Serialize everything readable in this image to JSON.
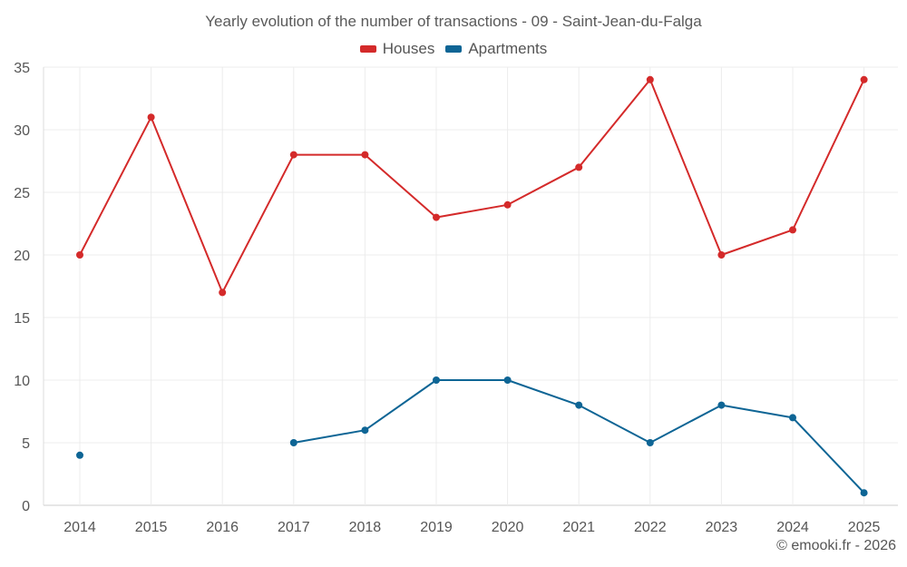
{
  "chart_data": {
    "type": "line",
    "title": "Yearly evolution of the number of transactions - 09 - Saint-Jean-du-Falga",
    "categories": [
      "2014",
      "2015",
      "2016",
      "2017",
      "2018",
      "2019",
      "2020",
      "2021",
      "2022",
      "2023",
      "2024",
      "2025"
    ],
    "series": [
      {
        "name": "Houses",
        "color": "#d42a2a",
        "values": [
          20,
          31,
          17,
          28,
          28,
          23,
          24,
          27,
          34,
          20,
          22,
          34
        ]
      },
      {
        "name": "Apartments",
        "color": "#0e6595",
        "values": [
          4,
          null,
          null,
          5,
          6,
          10,
          10,
          8,
          5,
          8,
          7,
          1
        ]
      }
    ],
    "yticks": [
      "0",
      "5",
      "10",
      "15",
      "20",
      "25",
      "30",
      "35"
    ],
    "ylim": [
      0,
      35
    ],
    "xlabel": "",
    "ylabel": "",
    "grid": true,
    "legend": "top-center"
  },
  "footer": {
    "copyright": "© emooki.fr - 2026"
  }
}
